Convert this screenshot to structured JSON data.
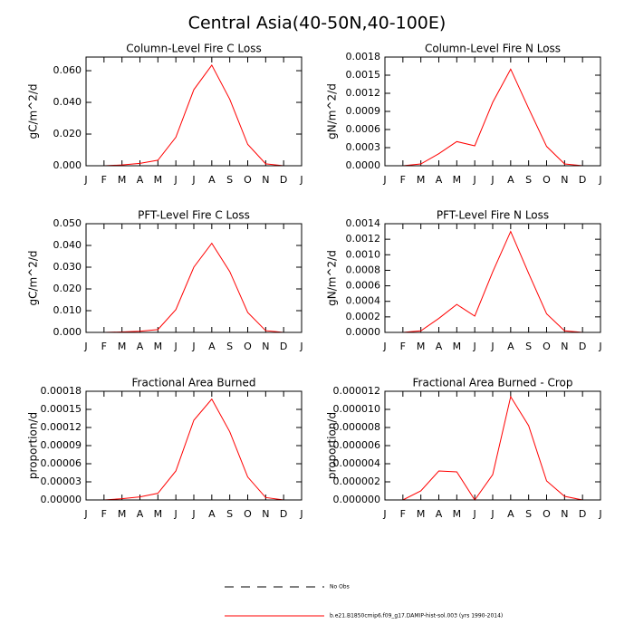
{
  "title": "Central Asia(40-50N,40-100E)",
  "legend": [
    {
      "name": "No Obs",
      "color": "#000000",
      "dash": true
    },
    {
      "name": "b.e21.B1850cmip6.f09_g17.DAMIP-hist-sol.003 (yrs 1990-2014)",
      "color": "#ff0000",
      "dash": false
    }
  ],
  "chart_data": [
    {
      "type": "line",
      "title": "Column-Level Fire C Loss",
      "y_label": "gC/m^2/d",
      "color": "#ff0000",
      "categories": [
        "J",
        "F",
        "M",
        "A",
        "M",
        "J",
        "J",
        "A",
        "S",
        "O",
        "N",
        "D",
        "J"
      ],
      "values": [
        0,
        0,
        0.0005,
        0.0015,
        0.0035,
        0.018,
        0.048,
        0.0635,
        0.042,
        0.0135,
        0.0012,
        0,
        0
      ],
      "ylim": [
        0,
        0.0686
      ],
      "yticks": [
        {
          "value": 0,
          "label": "0.000"
        },
        {
          "value": 0.02,
          "label": "0.020"
        },
        {
          "value": 0.04,
          "label": "0.040"
        },
        {
          "value": 0.06,
          "label": "0.060"
        }
      ]
    },
    {
      "type": "line",
      "title": "Column-Level Fire N Loss",
      "y_label": "gN/m^2/d",
      "color": "#ff0000",
      "categories": [
        "J",
        "F",
        "M",
        "A",
        "M",
        "J",
        "J",
        "A",
        "S",
        "O",
        "N",
        "D",
        "J"
      ],
      "values": [
        0,
        0,
        3e-05,
        0.0002,
        0.0004,
        0.00033,
        0.00105,
        0.0016,
        0.00095,
        0.00032,
        3e-05,
        0,
        0
      ],
      "ylim": [
        0,
        0.0018
      ],
      "yticks": [
        {
          "value": 0,
          "label": "0.0000"
        },
        {
          "value": 0.0003,
          "label": "0.0003"
        },
        {
          "value": 0.0006,
          "label": "0.0006"
        },
        {
          "value": 0.0009,
          "label": "0.0009"
        },
        {
          "value": 0.0012,
          "label": "0.0012"
        },
        {
          "value": 0.0015,
          "label": "0.0015"
        },
        {
          "value": 0.0018,
          "label": "0.0018"
        }
      ]
    },
    {
      "type": "line",
      "title": "PFT-Level Fire C Loss",
      "y_label": "gC/m^2/d",
      "color": "#ff0000",
      "categories": [
        "J",
        "F",
        "M",
        "A",
        "M",
        "J",
        "J",
        "A",
        "S",
        "O",
        "N",
        "D",
        "J"
      ],
      "values": [
        0,
        0,
        0.0002,
        0.0005,
        0.0013,
        0.0105,
        0.03,
        0.041,
        0.028,
        0.0092,
        0.0008,
        0,
        0
      ],
      "ylim": [
        0,
        0.05
      ],
      "yticks": [
        {
          "value": 0,
          "label": "0.000"
        },
        {
          "value": 0.01,
          "label": "0.010"
        },
        {
          "value": 0.02,
          "label": "0.020"
        },
        {
          "value": 0.03,
          "label": "0.030"
        },
        {
          "value": 0.04,
          "label": "0.040"
        },
        {
          "value": 0.05,
          "label": "0.050"
        }
      ]
    },
    {
      "type": "line",
      "title": "PFT-Level Fire N Loss",
      "y_label": "gN/m^2/d",
      "color": "#ff0000",
      "categories": [
        "J",
        "F",
        "M",
        "A",
        "M",
        "J",
        "J",
        "A",
        "S",
        "O",
        "N",
        "D",
        "J"
      ],
      "values": [
        0,
        0,
        2e-05,
        0.00018,
        0.00036,
        0.00021,
        0.00078,
        0.0013,
        0.00076,
        0.00024,
        2e-05,
        0,
        0
      ],
      "ylim": [
        0,
        0.0014
      ],
      "yticks": [
        {
          "value": 0,
          "label": "0.0000"
        },
        {
          "value": 0.0002,
          "label": "0.0002"
        },
        {
          "value": 0.0004,
          "label": "0.0004"
        },
        {
          "value": 0.0006,
          "label": "0.0006"
        },
        {
          "value": 0.0008,
          "label": "0.0008"
        },
        {
          "value": 0.001,
          "label": "0.0010"
        },
        {
          "value": 0.0012,
          "label": "0.0012"
        },
        {
          "value": 0.0014,
          "label": "0.0014"
        }
      ]
    },
    {
      "type": "line",
      "title": "Fractional Area Burned",
      "y_label": "proportion/d",
      "color": "#ff0000",
      "categories": [
        "J",
        "F",
        "M",
        "A",
        "M",
        "J",
        "J",
        "A",
        "S",
        "O",
        "N",
        "D",
        "J"
      ],
      "values": [
        0,
        0,
        2e-06,
        5e-06,
        1.1e-05,
        4.8e-05,
        0.000132,
        0.000167,
        0.000113,
        3.8e-05,
        4e-06,
        0,
        0
      ],
      "ylim": [
        0,
        0.00018
      ],
      "yticks": [
        {
          "value": 0,
          "label": "0.00000"
        },
        {
          "value": 3e-05,
          "label": "0.00003"
        },
        {
          "value": 6e-05,
          "label": "0.00006"
        },
        {
          "value": 9e-05,
          "label": "0.00009"
        },
        {
          "value": 0.00012,
          "label": "0.00012"
        },
        {
          "value": 0.00015,
          "label": "0.00015"
        },
        {
          "value": 0.00018,
          "label": "0.00018"
        }
      ]
    },
    {
      "type": "line",
      "title": "Fractional Area Burned - Crop",
      "y_label": "proportion/d",
      "color": "#ff0000",
      "categories": [
        "J",
        "F",
        "M",
        "A",
        "M",
        "J",
        "J",
        "A",
        "S",
        "O",
        "N",
        "D",
        "J"
      ],
      "values": [
        0,
        0,
        1e-06,
        3.2e-06,
        3.1e-06,
        0,
        2.8e-06,
        1.14e-05,
        8.2e-06,
        2.1e-06,
        4e-07,
        0,
        0
      ],
      "ylim": [
        0,
        1.2e-05
      ],
      "yticks": [
        {
          "value": 0,
          "label": "0.000000"
        },
        {
          "value": 2e-06,
          "label": "0.000002"
        },
        {
          "value": 4e-06,
          "label": "0.000004"
        },
        {
          "value": 6e-06,
          "label": "0.000006"
        },
        {
          "value": 8e-06,
          "label": "0.000008"
        },
        {
          "value": 1e-05,
          "label": "0.000010"
        },
        {
          "value": 1.2e-05,
          "label": "0.000012"
        }
      ]
    }
  ]
}
